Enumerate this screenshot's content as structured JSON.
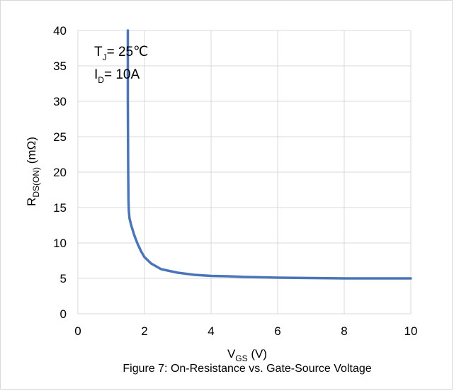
{
  "chart_data": {
    "type": "line",
    "title": "",
    "caption": "Figure 7: On-Resistance vs. Gate-Source Voltage",
    "xlabel": {
      "main": "V",
      "sub": "GS",
      "rest": " (V)"
    },
    "ylabel": {
      "main": "R",
      "sub": "DS(ON)",
      "rest": " (mΩ)"
    },
    "xlim": [
      0,
      10
    ],
    "ylim": [
      0,
      40
    ],
    "x_ticks": [
      0,
      2,
      4,
      6,
      8,
      10
    ],
    "y_ticks": [
      0,
      5,
      10,
      15,
      20,
      25,
      30,
      35,
      40
    ],
    "grid": true,
    "annotations": [
      {
        "main": "T",
        "sub": "J",
        "rest": "= 25℃"
      },
      {
        "main": "I",
        "sub": "D",
        "rest": "= 10A"
      }
    ],
    "series": [
      {
        "color": "#4a76b9",
        "x": [
          1.5,
          1.5,
          1.51,
          1.52,
          1.53,
          1.55,
          1.6,
          1.7,
          1.8,
          1.9,
          2.0,
          2.2,
          2.5,
          3.0,
          3.5,
          4.0,
          4.5,
          5.0,
          6.0,
          7.0,
          8.0,
          9.0,
          10.0
        ],
        "y": [
          40,
          30,
          20,
          16,
          14.5,
          13.5,
          12.5,
          11,
          9.8,
          8.8,
          8.0,
          7.1,
          6.3,
          5.8,
          5.5,
          5.35,
          5.3,
          5.2,
          5.1,
          5.05,
          5.0,
          5.0,
          5.0
        ]
      }
    ]
  }
}
